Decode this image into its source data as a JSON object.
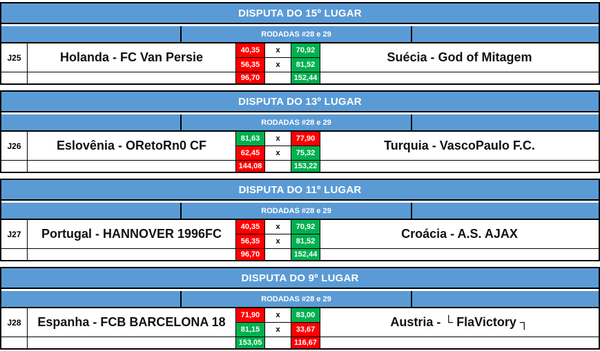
{
  "colors": {
    "header_blue": "#5B9BD5",
    "win_green": "#00B050",
    "lose_red": "#FF0000",
    "cell_text": "#FFFFFF"
  },
  "blocks": [
    {
      "title": "DISPUTA DO 15º LUGAR",
      "rounds_label": "RODADAS #28 e 29",
      "match_code": "J25",
      "home_team": "Holanda - FC Van Persie",
      "away_team": "Suécia - God of Mitagem",
      "rounds": [
        {
          "home_score": "40,35",
          "separator": "x",
          "away_score": "70,92",
          "home_result": "red",
          "away_result": "green"
        },
        {
          "home_score": "56,35",
          "separator": "x",
          "away_score": "81,52",
          "home_result": "red",
          "away_result": "green"
        }
      ],
      "totals": {
        "home_total": "96,70",
        "away_total": "152,44",
        "home_result": "red",
        "away_result": "green"
      }
    },
    {
      "title": "DISPUTA DO 13º LUGAR",
      "rounds_label": "RODADAS #28 e 29",
      "match_code": "J26",
      "home_team": "Eslovênia - ORetoRn0 CF",
      "away_team": "Turquia - VascoPaulo F.C.",
      "rounds": [
        {
          "home_score": "81,63",
          "separator": "x",
          "away_score": "77,90",
          "home_result": "green",
          "away_result": "red"
        },
        {
          "home_score": "62,45",
          "separator": "x",
          "away_score": "75,32",
          "home_result": "red",
          "away_result": "green"
        }
      ],
      "totals": {
        "home_total": "144,08",
        "away_total": "153,22",
        "home_result": "red",
        "away_result": "green"
      }
    },
    {
      "title": "DISPUTA DO 11º LUGAR",
      "rounds_label": "RODADAS #28 e 29",
      "match_code": "J27",
      "home_team": "Portugal - HANNOVER 1996FC",
      "away_team": "Croácia - A.S. AJAX",
      "rounds": [
        {
          "home_score": "40,35",
          "separator": "x",
          "away_score": "70,92",
          "home_result": "red",
          "away_result": "green"
        },
        {
          "home_score": "56,35",
          "separator": "x",
          "away_score": "81,52",
          "home_result": "red",
          "away_result": "green"
        }
      ],
      "totals": {
        "home_total": "96,70",
        "away_total": "152,44",
        "home_result": "red",
        "away_result": "green"
      }
    },
    {
      "title": "DISPUTA DO 9º LUGAR",
      "rounds_label": "RODADAS #28 e 29",
      "match_code": "J28",
      "home_team": "Espanha - FCB BARCELONA 18",
      "away_team": "Austria - └ FlaVictory ┐",
      "rounds": [
        {
          "home_score": "71,90",
          "separator": "x",
          "away_score": "83,00",
          "home_result": "red",
          "away_result": "green"
        },
        {
          "home_score": "81,15",
          "separator": "x",
          "away_score": "33,67",
          "home_result": "green",
          "away_result": "red"
        }
      ],
      "totals": {
        "home_total": "153,05",
        "away_total": "116,67",
        "home_result": "green",
        "away_result": "red"
      }
    }
  ]
}
